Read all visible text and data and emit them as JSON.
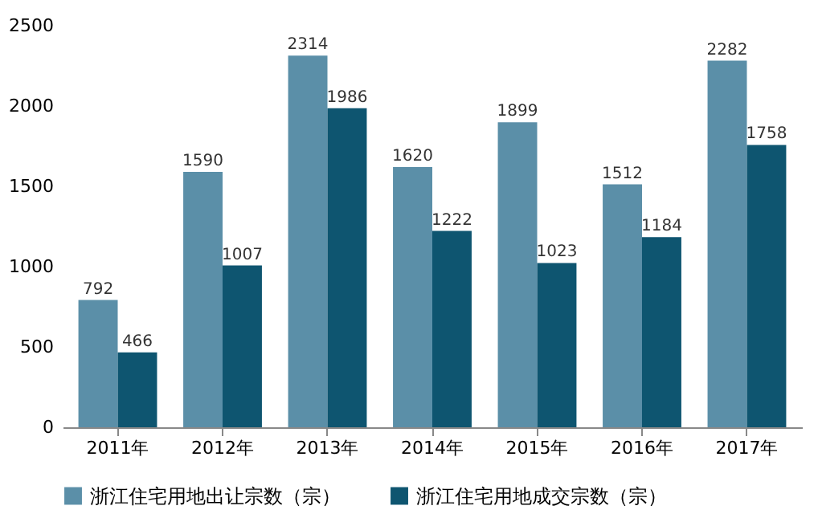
{
  "chart_data": {
    "type": "bar",
    "categories": [
      "2011年",
      "2012年",
      "2013年",
      "2014年",
      "2015年",
      "2016年",
      "2017年"
    ],
    "series": [
      {
        "name": "浙江住宅用地出让宗数（宗）",
        "color": "#5b8fa8",
        "values": [
          792,
          1590,
          2314,
          1620,
          1899,
          1512,
          2282
        ]
      },
      {
        "name": "浙江住宅用地成交宗数（宗）",
        "color": "#0e5570",
        "values": [
          466,
          1007,
          1986,
          1222,
          1023,
          1184,
          1758
        ]
      }
    ],
    "ylim": [
      0,
      2500
    ],
    "yticks": [
      0,
      500,
      1000,
      1500,
      2000,
      2500
    ],
    "grid": false,
    "legend": "bottom",
    "data_labels": true
  }
}
